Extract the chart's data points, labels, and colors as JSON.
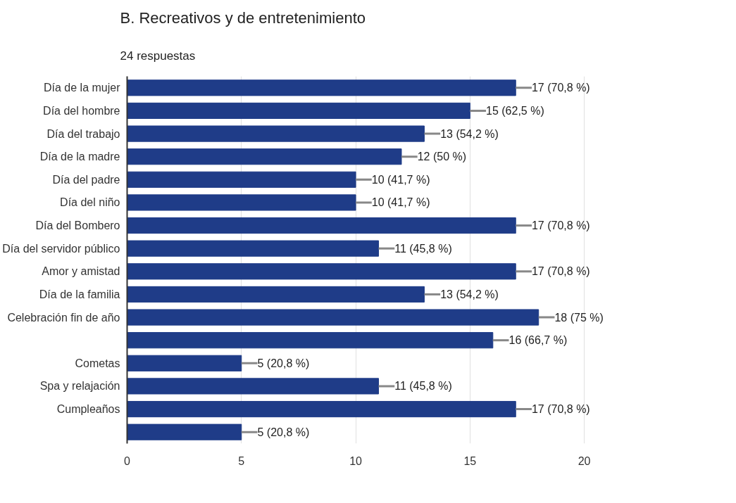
{
  "chart_data": {
    "type": "bar",
    "orientation": "horizontal",
    "title": "B. Recreativos y de entretenimiento",
    "subtitle": "24 respuestas",
    "categories": [
      "Día de la mujer",
      "Día del hombre",
      "Día del trabajo",
      "Día de la madre",
      "Día del padre",
      "Día del niño",
      "Día del Bombero",
      "Día del servidor público",
      "Amor y amistad",
      "Día de la familia",
      "Celebración fin de año",
      null,
      "Cometas",
      "Spa y relajación",
      "Cumpleaños",
      null
    ],
    "values": [
      17,
      15,
      13,
      12,
      10,
      10,
      17,
      11,
      17,
      13,
      18,
      16,
      5,
      11,
      17,
      5
    ],
    "value_labels": [
      "17 (70,8 %)",
      "15 (62,5 %)",
      "13 (54,2 %)",
      "12 (50 %)",
      "10 (41,7 %)",
      "10 (41,7 %)",
      "17 (70,8 %)",
      "11 (45,8 %)",
      "17 (70,8 %)",
      "13 (54,2 %)",
      "18 (75 %)",
      "16 (66,7 %)",
      "5 (20,8 %)",
      "11 (45,8 %)",
      "17 (70,8 %)",
      "5 (20,8 %)"
    ],
    "color": "#1f3c88",
    "xlim": [
      0,
      20
    ],
    "xticks": [
      0,
      5,
      10,
      15,
      20
    ],
    "grid": "x"
  }
}
